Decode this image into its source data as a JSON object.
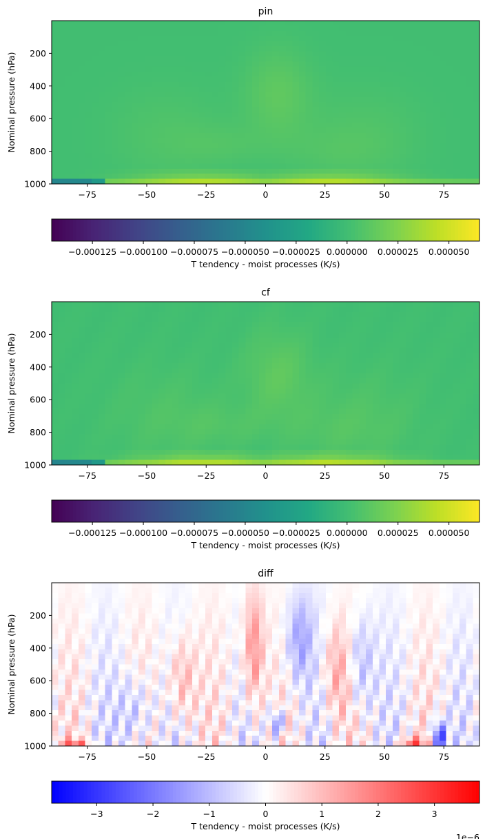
{
  "figure": {
    "background": "#ffffff"
  },
  "chart_data": [
    {
      "type": "heatmap",
      "title": "pin",
      "xlabel": "",
      "ylabel": "Nominal pressure (hPa)",
      "xlim": [
        -90,
        90
      ],
      "ylim": [
        1000,
        0
      ],
      "xticks": [
        -75,
        -50,
        -25,
        0,
        25,
        50,
        75
      ],
      "xtick_labels": [
        "−75",
        "−50",
        "−25",
        "0",
        "25",
        "50",
        "75"
      ],
      "yticks": [
        200,
        400,
        600,
        800,
        1000
      ],
      "ytick_labels": [
        "200",
        "400",
        "600",
        "800",
        "1000"
      ],
      "colormap": "viridis",
      "colorbar": {
        "label": "T tendency - moist processes (K/s)",
        "range": [
          -0.000145,
          6.5e-05
        ],
        "ticks": [
          -0.000125,
          -0.0001,
          -7.5e-05,
          -5e-05,
          -2.5e-05,
          0,
          2.5e-05,
          5e-05
        ],
        "tick_labels": [
          "−0.000125",
          "−0.000100",
          "−0.000075",
          "−0.000050",
          "−0.000025",
          "0.000000",
          "0.000025",
          "0.000050"
        ],
        "offset_text": ""
      }
    },
    {
      "type": "heatmap",
      "title": "cf",
      "xlabel": "",
      "ylabel": "Nominal pressure (hPa)",
      "xlim": [
        -90,
        90
      ],
      "ylim": [
        1000,
        0
      ],
      "xticks": [
        -75,
        -50,
        -25,
        0,
        25,
        50,
        75
      ],
      "xtick_labels": [
        "−75",
        "−50",
        "−25",
        "0",
        "25",
        "50",
        "75"
      ],
      "yticks": [
        200,
        400,
        600,
        800,
        1000
      ],
      "ytick_labels": [
        "200",
        "400",
        "600",
        "800",
        "1000"
      ],
      "colormap": "viridis",
      "colorbar": {
        "label": "T tendency - moist processes (K/s)",
        "range": [
          -0.000145,
          6.5e-05
        ],
        "ticks": [
          -0.000125,
          -0.0001,
          -7.5e-05,
          -5e-05,
          -2.5e-05,
          0,
          2.5e-05,
          5e-05
        ],
        "tick_labels": [
          "−0.000125",
          "−0.000100",
          "−0.000075",
          "−0.000050",
          "−0.000025",
          "0.000000",
          "0.000025",
          "0.000050"
        ],
        "offset_text": ""
      }
    },
    {
      "type": "heatmap",
      "title": "diff",
      "xlabel": "",
      "ylabel": "Nominal pressure (hPa)",
      "xlim": [
        -90,
        90
      ],
      "ylim": [
        1000,
        0
      ],
      "xticks": [
        -75,
        -50,
        -25,
        0,
        25,
        50,
        75
      ],
      "xtick_labels": [
        "−75",
        "−50",
        "−25",
        "0",
        "25",
        "50",
        "75"
      ],
      "yticks": [
        200,
        400,
        600,
        800,
        1000
      ],
      "ytick_labels": [
        "200",
        "400",
        "600",
        "800",
        "1000"
      ],
      "colormap": "bwr",
      "colorbar": {
        "label": "T tendency - moist processes (K/s)",
        "range": [
          -3.8e-06,
          3.8e-06
        ],
        "ticks": [
          -3e-06,
          -2e-06,
          -1e-06,
          0,
          1e-06,
          2e-06,
          3e-06
        ],
        "tick_labels": [
          "−3",
          "−2",
          "−1",
          "0",
          "1",
          "2",
          "3"
        ],
        "offset_text": "1e−6"
      }
    }
  ]
}
